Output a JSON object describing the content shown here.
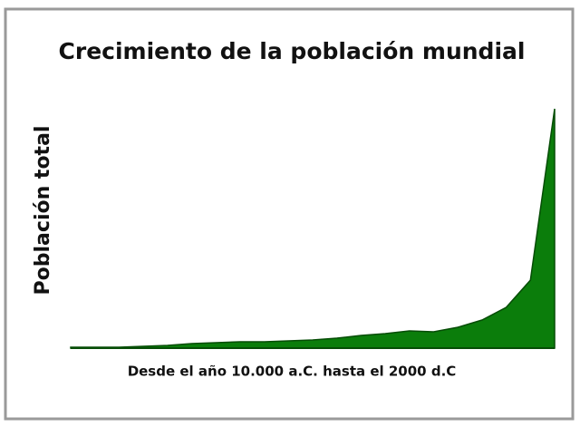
{
  "chart_data": {
    "type": "area",
    "title": "Crecimiento de la población mundial",
    "y_label": "Población total",
    "x_label": "Desde el año 10.000 a.C. hasta el 2000 d.C",
    "color": "#0b7d0b",
    "values": [
      1,
      1,
      1,
      2,
      3,
      5,
      6,
      7,
      7,
      8,
      9,
      11,
      14,
      16,
      19,
      18,
      23,
      31,
      45,
      75,
      264
    ]
  }
}
